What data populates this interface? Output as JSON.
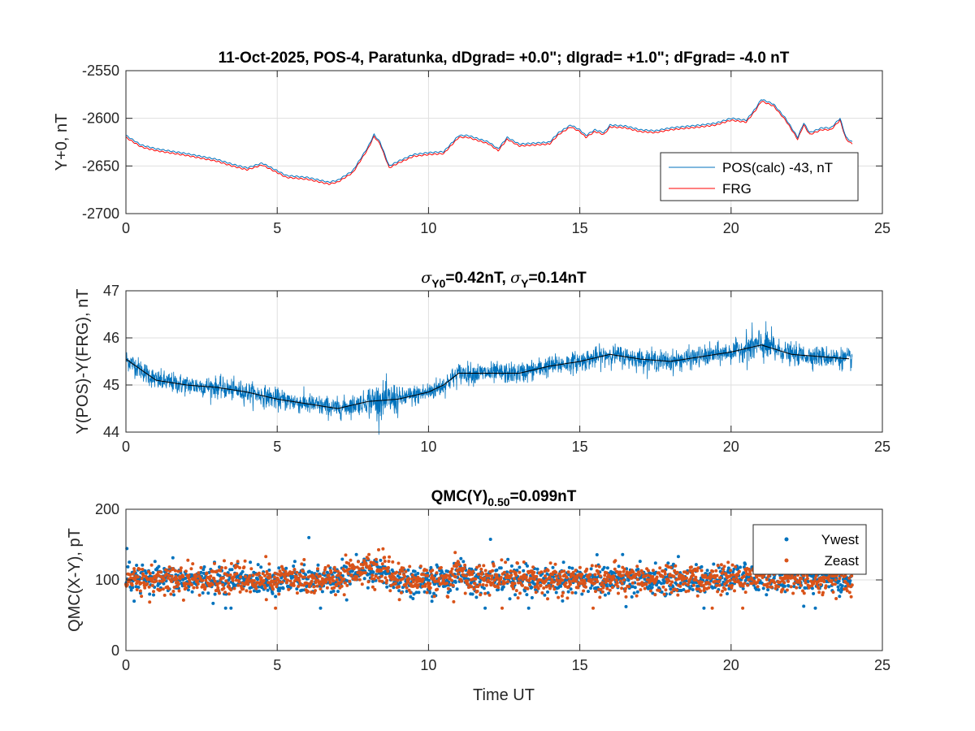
{
  "chart_data": [
    {
      "type": "line",
      "title": "11-Oct-2025, POS-4, Paratunka, dDgrad=  +0.0\"; dIgrad=  +1.0\"; dFgrad= -4.0 nT",
      "xlabel": "",
      "ylabel": "Y+0, nT",
      "xlim": [
        0,
        25
      ],
      "ylim": [
        -2700,
        -2550
      ],
      "xticks": [
        "0",
        "5",
        "10",
        "15",
        "20",
        "25"
      ],
      "yticks": [
        "-2700",
        "-2650",
        "-2600",
        "-2550"
      ],
      "grid": true,
      "legend_position": "bottom-right",
      "x": [
        0,
        0.5,
        1,
        2,
        3,
        3.5,
        4,
        4.5,
        5,
        5.3,
        6,
        6.7,
        7,
        7.5,
        8,
        8.2,
        8.4,
        8.7,
        9,
        9.5,
        10,
        10.5,
        11,
        11.3,
        12,
        12.3,
        12.6,
        13,
        13.5,
        14,
        14.3,
        14.7,
        15,
        15.2,
        15.5,
        15.8,
        16,
        16.5,
        17,
        17.5,
        18,
        19,
        19.5,
        20,
        20.5,
        20.8,
        21,
        21.4,
        21.8,
        22,
        22.2,
        22.4,
        22.6,
        23,
        23.3,
        23.6,
        23.8,
        24
      ],
      "series": [
        {
          "name": "POS(calc)  -43, nT",
          "color": "#0072BD",
          "values": [
            -2618,
            -2628,
            -2632,
            -2637,
            -2643,
            -2648,
            -2652,
            -2647,
            -2655,
            -2660,
            -2662,
            -2667,
            -2665,
            -2655,
            -2630,
            -2617,
            -2625,
            -2650,
            -2645,
            -2638,
            -2636,
            -2635,
            -2618,
            -2618,
            -2625,
            -2632,
            -2620,
            -2627,
            -2626,
            -2625,
            -2615,
            -2607,
            -2612,
            -2618,
            -2612,
            -2615,
            -2607,
            -2608,
            -2612,
            -2613,
            -2610,
            -2607,
            -2605,
            -2600,
            -2602,
            -2590,
            -2580,
            -2585,
            -2600,
            -2610,
            -2620,
            -2605,
            -2615,
            -2610,
            -2610,
            -2600,
            -2620,
            -2625
          ]
        },
        {
          "name": "FRG",
          "color": "#FF0000",
          "values": [
            -2620,
            -2630,
            -2634,
            -2639,
            -2645,
            -2650,
            -2654,
            -2649,
            -2657,
            -2662,
            -2664,
            -2669,
            -2667,
            -2657,
            -2632,
            -2619,
            -2627,
            -2652,
            -2647,
            -2640,
            -2638,
            -2637,
            -2620,
            -2620,
            -2627,
            -2634,
            -2622,
            -2629,
            -2628,
            -2627,
            -2617,
            -2609,
            -2614,
            -2620,
            -2614,
            -2617,
            -2609,
            -2610,
            -2614,
            -2615,
            -2612,
            -2609,
            -2607,
            -2602,
            -2604,
            -2592,
            -2582,
            -2587,
            -2602,
            -2612,
            -2622,
            -2607,
            -2617,
            -2612,
            -2612,
            -2602,
            -2622,
            -2627
          ]
        }
      ]
    },
    {
      "type": "line",
      "title_parts": [
        "σ",
        "Y0",
        "=0.42nT, ",
        "σ",
        "Y",
        "=0.14nT"
      ],
      "ylabel": "Y(POS)-Y(FRG), nT",
      "xlim": [
        0,
        25
      ],
      "ylim": [
        44,
        47
      ],
      "xticks": [
        "0",
        "5",
        "10",
        "15",
        "20",
        "25"
      ],
      "yticks": [
        "44",
        "45",
        "46",
        "47"
      ],
      "grid": true,
      "x": [
        0,
        1,
        2,
        3,
        4,
        5,
        6,
        7,
        8,
        9,
        10,
        10.5,
        11,
        12,
        13,
        14,
        15,
        16,
        17,
        18,
        19,
        20,
        21,
        22,
        23,
        24
      ],
      "series": [
        {
          "color": "#0072BD",
          "style": "noisy",
          "values": [
            45.55,
            45.1,
            45.0,
            44.95,
            44.85,
            44.7,
            44.6,
            44.5,
            44.65,
            44.7,
            44.85,
            45.0,
            45.25,
            45.25,
            45.25,
            45.4,
            45.5,
            45.65,
            45.55,
            45.5,
            45.6,
            45.7,
            45.85,
            45.65,
            45.6,
            45.55
          ]
        },
        {
          "color": "#000000",
          "style": "smooth",
          "values": [
            45.55,
            45.1,
            45.0,
            44.95,
            44.85,
            44.7,
            44.6,
            44.5,
            44.65,
            44.7,
            44.85,
            45.0,
            45.25,
            45.25,
            45.25,
            45.4,
            45.5,
            45.65,
            45.55,
            45.5,
            45.6,
            45.7,
            45.85,
            45.65,
            45.6,
            45.55
          ]
        }
      ]
    },
    {
      "type": "scatter",
      "title_parts": [
        "QMC(Y)",
        "0.50",
        "=0.099nT"
      ],
      "xlabel": "Time UT",
      "ylabel": "QMC(X-Y), pT",
      "xlim": [
        0,
        25
      ],
      "ylim": [
        0,
        200
      ],
      "xticks": [
        "0",
        "5",
        "10",
        "15",
        "20",
        "25"
      ],
      "yticks": [
        "0",
        "100",
        "200"
      ],
      "grid": true,
      "legend_position": "top-right",
      "x": [
        0,
        7,
        7.5,
        8.5,
        9,
        10.7,
        11,
        11.3,
        20,
        20.5,
        24
      ],
      "series": [
        {
          "name": "Ywest",
          "color": "#0072BD",
          "values": [
            100,
            100,
            112,
            112,
            100,
            100,
            115,
            100,
            100,
            105,
            100
          ]
        },
        {
          "name": "Zeast",
          "color": "#D95319",
          "values": [
            100,
            100,
            115,
            112,
            100,
            100,
            118,
            100,
            100,
            105,
            100
          ]
        }
      ]
    }
  ]
}
